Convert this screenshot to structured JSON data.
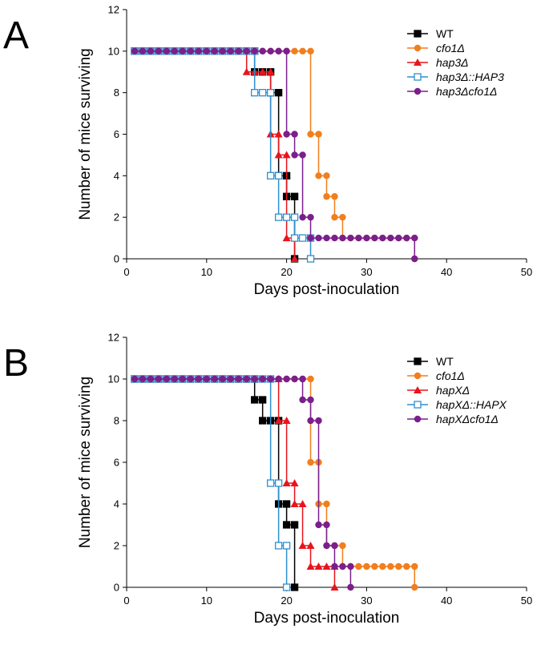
{
  "chart_data": [
    {
      "type": "line",
      "step": true,
      "panel": "A",
      "xlabel": "Days post-inoculation",
      "ylabel": "Number of mice surviving",
      "xlim": [
        0,
        50
      ],
      "xticks": [
        0,
        10,
        20,
        30,
        40,
        50
      ],
      "ylim": [
        0,
        12
      ],
      "yticks": [
        0,
        2,
        4,
        6,
        8,
        10,
        12
      ],
      "legend": "upper right",
      "series": [
        {
          "name": "WT",
          "color": "#000000",
          "marker": "square",
          "x": [
            1,
            2,
            3,
            4,
            5,
            6,
            7,
            8,
            9,
            10,
            11,
            12,
            13,
            14,
            15,
            16,
            16,
            17,
            18,
            18,
            19,
            19,
            20,
            20,
            21,
            21
          ],
          "values": [
            10,
            10,
            10,
            10,
            10,
            10,
            10,
            10,
            10,
            10,
            10,
            10,
            10,
            10,
            10,
            10,
            9,
            9,
            9,
            8,
            8,
            4,
            4,
            3,
            3,
            0
          ]
        },
        {
          "name": "cfo1Δ",
          "color": "#f07f1e",
          "marker": "circle",
          "x": [
            1,
            2,
            3,
            4,
            5,
            6,
            7,
            8,
            9,
            10,
            11,
            12,
            13,
            14,
            15,
            16,
            17,
            18,
            19,
            20,
            21,
            22,
            23,
            23,
            24,
            24,
            25,
            25,
            26,
            26,
            27,
            27,
            28,
            29,
            30,
            31,
            32,
            33,
            34,
            35,
            36,
            36
          ],
          "values": [
            10,
            10,
            10,
            10,
            10,
            10,
            10,
            10,
            10,
            10,
            10,
            10,
            10,
            10,
            10,
            10,
            10,
            10,
            10,
            10,
            10,
            10,
            10,
            6,
            6,
            4,
            4,
            3,
            3,
            2,
            2,
            1,
            1,
            1,
            1,
            1,
            1,
            1,
            1,
            1,
            1,
            0
          ]
        },
        {
          "name": "hap3Δ",
          "color": "#e8141c",
          "marker": "triangle",
          "x": [
            1,
            2,
            3,
            4,
            5,
            6,
            7,
            8,
            9,
            10,
            11,
            12,
            13,
            14,
            15,
            15,
            16,
            17,
            18,
            18,
            19,
            19,
            20,
            20,
            21,
            21
          ],
          "values": [
            10,
            10,
            10,
            10,
            10,
            10,
            10,
            10,
            10,
            10,
            10,
            10,
            10,
            10,
            10,
            9,
            9,
            9,
            9,
            6,
            6,
            5,
            5,
            1,
            1,
            0
          ]
        },
        {
          "name": "hap3Δ::HAP3",
          "color": "#2e8fd0",
          "marker": "open-square",
          "x": [
            1,
            2,
            3,
            4,
            5,
            6,
            7,
            8,
            9,
            10,
            11,
            12,
            13,
            14,
            15,
            16,
            16,
            17,
            18,
            18,
            19,
            19,
            20,
            21,
            21,
            22,
            23,
            23
          ],
          "values": [
            10,
            10,
            10,
            10,
            10,
            10,
            10,
            10,
            10,
            10,
            10,
            10,
            10,
            10,
            10,
            10,
            8,
            8,
            8,
            4,
            4,
            2,
            2,
            2,
            1,
            1,
            1,
            0
          ]
        },
        {
          "name": "hap3Δcfo1Δ",
          "color": "#7b1f8c",
          "marker": "circle",
          "x": [
            1,
            2,
            3,
            4,
            5,
            6,
            7,
            8,
            9,
            10,
            11,
            12,
            13,
            14,
            15,
            16,
            17,
            18,
            19,
            20,
            20,
            21,
            21,
            22,
            22,
            23,
            23,
            24,
            25,
            26,
            27,
            28,
            29,
            30,
            31,
            32,
            33,
            34,
            35,
            36,
            36
          ],
          "values": [
            10,
            10,
            10,
            10,
            10,
            10,
            10,
            10,
            10,
            10,
            10,
            10,
            10,
            10,
            10,
            10,
            10,
            10,
            10,
            10,
            6,
            6,
            5,
            5,
            2,
            2,
            1,
            1,
            1,
            1,
            1,
            1,
            1,
            1,
            1,
            1,
            1,
            1,
            1,
            1,
            0
          ]
        }
      ]
    },
    {
      "type": "line",
      "step": true,
      "panel": "B",
      "xlabel": "Days post-inoculation",
      "ylabel": "Number of mice surviving",
      "xlim": [
        0,
        50
      ],
      "xticks": [
        0,
        10,
        20,
        30,
        40,
        50
      ],
      "ylim": [
        0,
        12
      ],
      "yticks": [
        0,
        2,
        4,
        6,
        8,
        10,
        12
      ],
      "legend": "upper right",
      "series": [
        {
          "name": "WT",
          "color": "#000000",
          "marker": "square",
          "x": [
            1,
            2,
            3,
            4,
            5,
            6,
            7,
            8,
            9,
            10,
            11,
            12,
            13,
            14,
            15,
            16,
            16,
            17,
            17,
            18,
            19,
            19,
            20,
            20,
            21,
            21
          ],
          "values": [
            10,
            10,
            10,
            10,
            10,
            10,
            10,
            10,
            10,
            10,
            10,
            10,
            10,
            10,
            10,
            10,
            9,
            9,
            8,
            8,
            8,
            4,
            4,
            3,
            3,
            0
          ]
        },
        {
          "name": "cfo1Δ",
          "color": "#f07f1e",
          "marker": "circle",
          "x": [
            1,
            2,
            3,
            4,
            5,
            6,
            7,
            8,
            9,
            10,
            11,
            12,
            13,
            14,
            15,
            16,
            17,
            18,
            19,
            20,
            21,
            22,
            23,
            23,
            24,
            24,
            25,
            25,
            26,
            27,
            27,
            28,
            29,
            30,
            31,
            32,
            33,
            34,
            35,
            36,
            36
          ],
          "values": [
            10,
            10,
            10,
            10,
            10,
            10,
            10,
            10,
            10,
            10,
            10,
            10,
            10,
            10,
            10,
            10,
            10,
            10,
            10,
            10,
            10,
            10,
            10,
            6,
            6,
            4,
            4,
            2,
            2,
            2,
            1,
            1,
            1,
            1,
            1,
            1,
            1,
            1,
            1,
            1,
            0
          ]
        },
        {
          "name": "hapXΔ",
          "color": "#e8141c",
          "marker": "triangle",
          "x": [
            1,
            2,
            3,
            4,
            5,
            6,
            7,
            8,
            9,
            10,
            11,
            12,
            13,
            14,
            15,
            16,
            17,
            18,
            19,
            19,
            20,
            20,
            21,
            21,
            22,
            22,
            23,
            23,
            24,
            25,
            26,
            26
          ],
          "values": [
            10,
            10,
            10,
            10,
            10,
            10,
            10,
            10,
            10,
            10,
            10,
            10,
            10,
            10,
            10,
            10,
            10,
            10,
            10,
            8,
            8,
            5,
            5,
            4,
            4,
            2,
            2,
            1,
            1,
            1,
            1,
            0
          ]
        },
        {
          "name": "hapXΔ::HAPX",
          "color": "#2e8fd0",
          "marker": "open-square",
          "x": [
            1,
            2,
            3,
            4,
            5,
            6,
            7,
            8,
            9,
            10,
            11,
            12,
            13,
            14,
            15,
            16,
            17,
            18,
            18,
            19,
            19,
            20,
            20
          ],
          "values": [
            10,
            10,
            10,
            10,
            10,
            10,
            10,
            10,
            10,
            10,
            10,
            10,
            10,
            10,
            10,
            10,
            10,
            10,
            5,
            5,
            2,
            2,
            0
          ]
        },
        {
          "name": "hapXΔcfo1Δ",
          "color": "#7b1f8c",
          "marker": "circle",
          "x": [
            1,
            2,
            3,
            4,
            5,
            6,
            7,
            8,
            9,
            10,
            11,
            12,
            13,
            14,
            15,
            16,
            17,
            18,
            19,
            20,
            21,
            22,
            22,
            23,
            23,
            24,
            24,
            25,
            25,
            26,
            26,
            27,
            28,
            28
          ],
          "values": [
            10,
            10,
            10,
            10,
            10,
            10,
            10,
            10,
            10,
            10,
            10,
            10,
            10,
            10,
            10,
            10,
            10,
            10,
            10,
            10,
            10,
            10,
            9,
            9,
            8,
            8,
            3,
            3,
            2,
            2,
            1,
            1,
            1,
            0
          ]
        }
      ]
    }
  ]
}
